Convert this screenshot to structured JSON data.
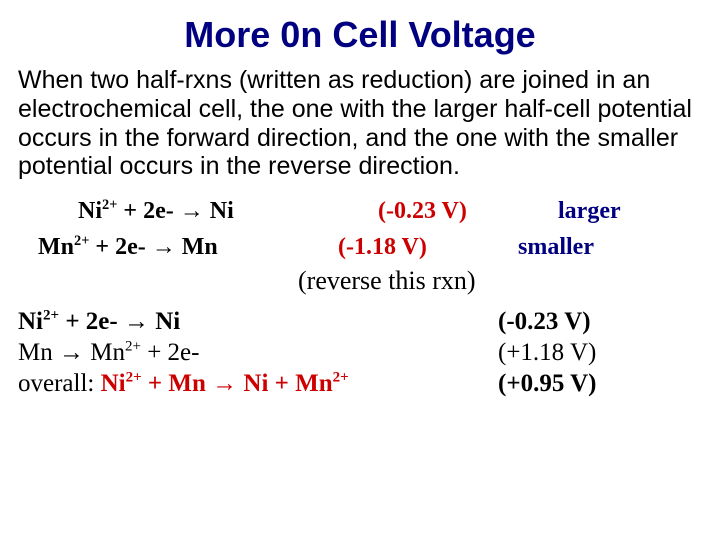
{
  "title": "More 0n Cell Voltage",
  "paragraph": "When two half-rxns (written as reduction) are joined in an electrochemical cell, the one with the larger half-cell potential occurs in the forward direction, and the one with the smaller potential occurs in the reverse direction.",
  "reactions": {
    "ni": {
      "lhs": "Ni",
      "lhs_sup": "2+",
      "plus": " + 2e- ",
      "arrow": "→",
      "rhs": " Ni ",
      "volt": "(-0.23 V)",
      "tag": "larger"
    },
    "mn": {
      "lhs": "Mn",
      "lhs_sup": "2+",
      "plus": " + 2e- ",
      "arrow": "→",
      "rhs": " Mn  ",
      "volt": "(-1.18 V)",
      "tag": "smaller"
    }
  },
  "reverse_note": "(reverse this rxn)",
  "summary": {
    "r1": {
      "eq_a": "Ni",
      "eq_a_sup": "2+",
      "eq_b": " + 2e- ",
      "arrow": "→",
      "eq_c": " Ni",
      "volt": "(-0.23 V)"
    },
    "r2": {
      "eq_a": "Mn ",
      "arrow": "→",
      "eq_b": " Mn",
      "eq_b_sup": "2+",
      "eq_c": " + 2e-",
      "volt": " (+1.18 V)"
    },
    "overall": {
      "label": "overall: ",
      "a": "Ni",
      "a_sup": "2+",
      "plus1": " + Mn ",
      "arrow": "→",
      "b": " Ni +  Mn",
      "b_sup": "2+",
      "volt": "(+0.95 V)"
    }
  },
  "colors": {
    "title": "#000080",
    "accent": "#cc0000",
    "text": "#000000"
  }
}
